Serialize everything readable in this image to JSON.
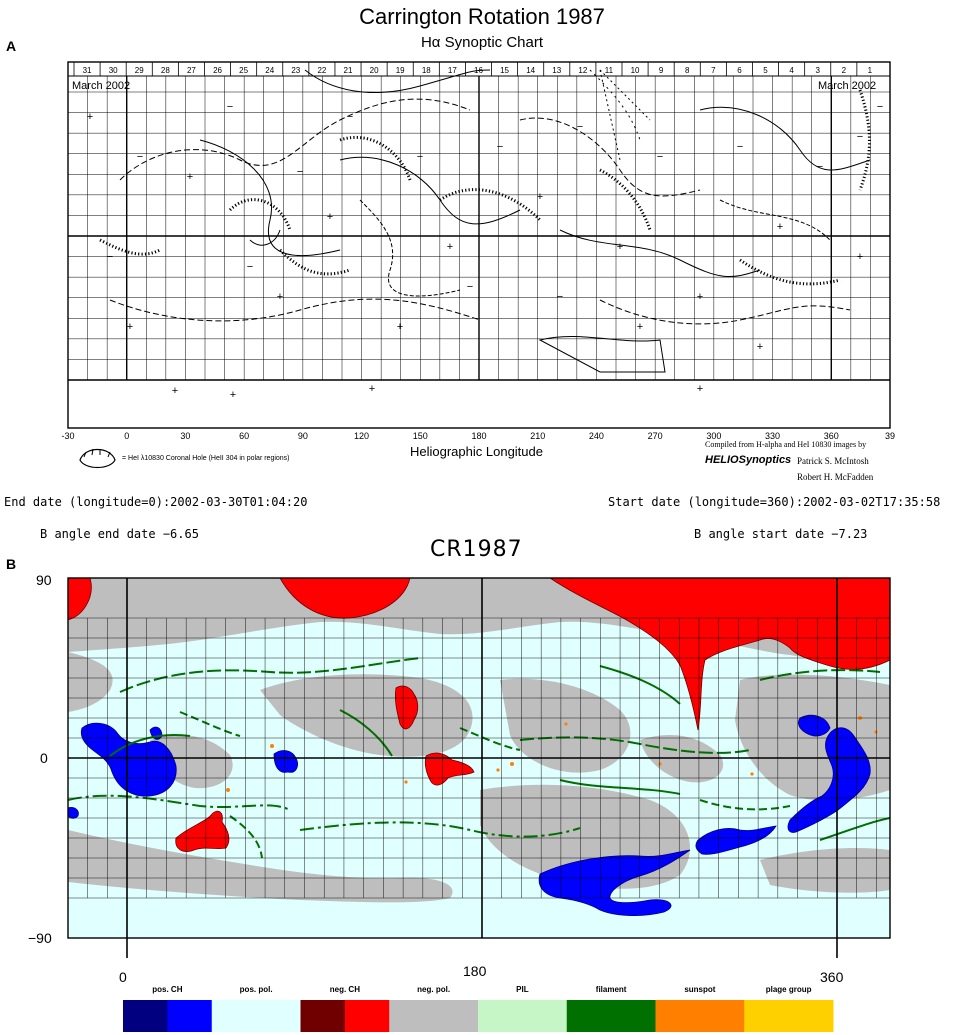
{
  "panel_a": {
    "label": "A",
    "title": "Carrington Rotation 1987",
    "subtitle": "Hα Synoptic Chart",
    "month_left": "March 2002",
    "month_right": "March 2002",
    "day_ticks": [
      "31",
      "30",
      "29",
      "28",
      "27",
      "26",
      "25",
      "24",
      "23",
      "22",
      "21",
      "20",
      "19",
      "18",
      "17",
      "16",
      "15",
      "14",
      "13",
      "12",
      "11",
      "10",
      "9",
      "8",
      "7",
      "6",
      "5",
      "4",
      "3",
      "2",
      "1"
    ],
    "x_ticks": [
      "-30",
      "0",
      "30",
      "60",
      "90",
      "120",
      "150",
      "180",
      "210",
      "240",
      "270",
      "300",
      "330",
      "360",
      "39"
    ],
    "xlabel": "Heliographic Longitude",
    "legend_note": "= HeI λ10830 Coronal Hole (HeII 304 in polar regions)",
    "credit_line1": "Compiled from H-alpha and HeI 10830 images by",
    "credit_brand": "HELIOSynoptics",
    "credit_name1": "Patrick S. McIntosh",
    "credit_name2": "Robert H. McFadden"
  },
  "meta_text": {
    "end_date": "End date (longitude=0):2002-03-30T01:04:20",
    "start_date": "Start date (longitude=360):2002-03-02T17:35:58",
    "b_end": "B angle end date −6.65",
    "b_start": "B angle start date −7.23"
  },
  "panel_b": {
    "label": "B",
    "title": "CR1987",
    "y_ticks": [
      "90",
      "0",
      "−90"
    ],
    "x_ticks": [
      "0",
      "180",
      "360"
    ]
  },
  "chart_data": [
    {
      "type": "heatmap",
      "title": "Carrington Rotation 1987",
      "subtitle": "Hα Synoptic Chart",
      "xlabel": "Heliographic Longitude",
      "xlim": [
        -30,
        390
      ],
      "ylim": [
        -90,
        90
      ]
    },
    {
      "type": "heatmap",
      "title": "CR1987",
      "xlim": [
        -30,
        390
      ],
      "ylim": [
        -90,
        90
      ],
      "x_ticks": [
        0,
        180,
        360
      ],
      "y_ticks": [
        90,
        0,
        -90
      ],
      "grid": true,
      "legend": [
        {
          "name": "pos. CH",
          "colors": [
            "#000080",
            "#0000ff"
          ]
        },
        {
          "name": "pos. pol.",
          "colors": [
            "#e0ffff"
          ]
        },
        {
          "name": "neg. CH",
          "colors": [
            "#700000",
            "#ff0000"
          ]
        },
        {
          "name": "neg. pol.",
          "colors": [
            "#bebebe"
          ]
        },
        {
          "name": "PIL",
          "colors": [
            "#c6f5c6"
          ]
        },
        {
          "name": "filament",
          "colors": [
            "#007000"
          ]
        },
        {
          "name": "sunspot",
          "colors": [
            "#ff8000"
          ]
        },
        {
          "name": "plage group",
          "colors": [
            "#ffd000"
          ]
        }
      ],
      "legend_placement": "bottom"
    }
  ]
}
